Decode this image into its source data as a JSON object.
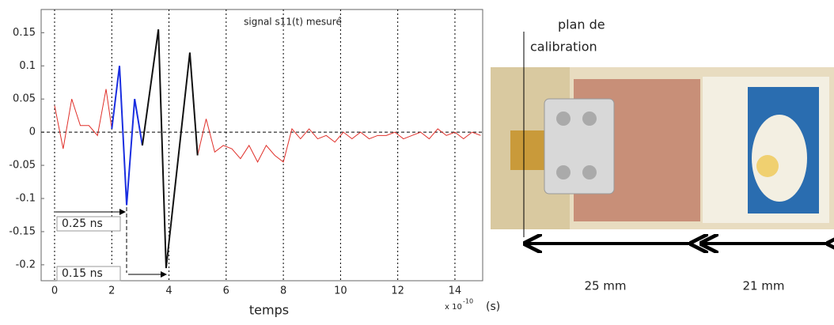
{
  "chart_data": {
    "type": "line",
    "title": "signal  s11(t) mesuré",
    "x_label": "temps",
    "x_scale_label": "x 10",
    "x_scale_exponent": "-10",
    "x_unit": "(s)",
    "annotations": [
      "0.25 ns",
      "0.15 ns"
    ],
    "x": [
      0,
      0.3,
      0.6,
      0.9,
      1.2,
      1.5,
      1.8,
      2.0,
      2.27,
      2.52,
      2.8,
      3.07,
      3.63,
      3.9,
      4.73,
      5.0,
      5.3,
      5.6,
      5.9,
      6.2,
      6.5,
      6.8,
      7.1,
      7.4,
      7.7,
      8.0,
      8.3,
      8.6,
      8.9,
      9.2,
      9.5,
      9.8,
      10.1,
      10.4,
      10.7,
      11.0,
      11.3,
      11.6,
      11.9,
      12.2,
      12.5,
      12.8,
      13.1,
      13.4,
      13.7,
      14.0,
      14.3,
      14.6,
      14.9
    ],
    "series": [
      {
        "color": "#e0302a",
        "values": [
          0.04,
          -0.025,
          0.05,
          0.01,
          0.01,
          -0.005,
          0.065,
          0.005,
          null,
          null,
          null,
          null,
          null,
          null,
          null,
          -0.035,
          0.02,
          -0.03,
          -0.02,
          -0.025,
          -0.04,
          -0.02,
          -0.045,
          -0.02,
          -0.035,
          -0.045,
          0.005,
          -0.01,
          0.005,
          -0.01,
          -0.005,
          -0.015,
          0.0,
          -0.01,
          0.0,
          -0.01,
          -0.005,
          -0.005,
          0.0,
          -0.01,
          -0.005,
          0.0,
          -0.01,
          0.005,
          -0.005,
          0.0,
          -0.01,
          0.0,
          -0.005
        ]
      },
      {
        "color": "#1a2ee0",
        "values": [
          null,
          null,
          null,
          null,
          null,
          null,
          null,
          0.005,
          0.1,
          -0.11,
          0.05,
          -0.02,
          null,
          null,
          null,
          null,
          null,
          null,
          null,
          null,
          null,
          null,
          null,
          null,
          null,
          null,
          null,
          null,
          null,
          null,
          null,
          null,
          null,
          null,
          null,
          null,
          null,
          null,
          null,
          null,
          null,
          null,
          null,
          null,
          null,
          null,
          null,
          null,
          null
        ]
      },
      {
        "color": "#111111",
        "values": [
          null,
          null,
          null,
          null,
          null,
          null,
          null,
          null,
          null,
          null,
          null,
          -0.02,
          0.155,
          -0.205,
          0.12,
          -0.035,
          null,
          null,
          null,
          null,
          null,
          null,
          null,
          null,
          null,
          null,
          null,
          null,
          null,
          null,
          null,
          null,
          null,
          null,
          null,
          null,
          null,
          null,
          null,
          null,
          null,
          null,
          null,
          null,
          null,
          null,
          null,
          null,
          null
        ]
      }
    ],
    "xlim": [
      -0.47,
      14.97
    ],
    "xticks": [
      0,
      2,
      4,
      6,
      8,
      10,
      12,
      14
    ],
    "ylim": [
      -0.224,
      0.185
    ],
    "yticks": [
      -0.2,
      -0.15,
      -0.1,
      -0.05,
      0,
      0.05,
      0.1,
      0.15
    ],
    "grid": true
  },
  "photo": {
    "calibration_label": [
      "plan de",
      "calibration"
    ],
    "dimensions": [
      "25 mm",
      "21 mm"
    ]
  }
}
